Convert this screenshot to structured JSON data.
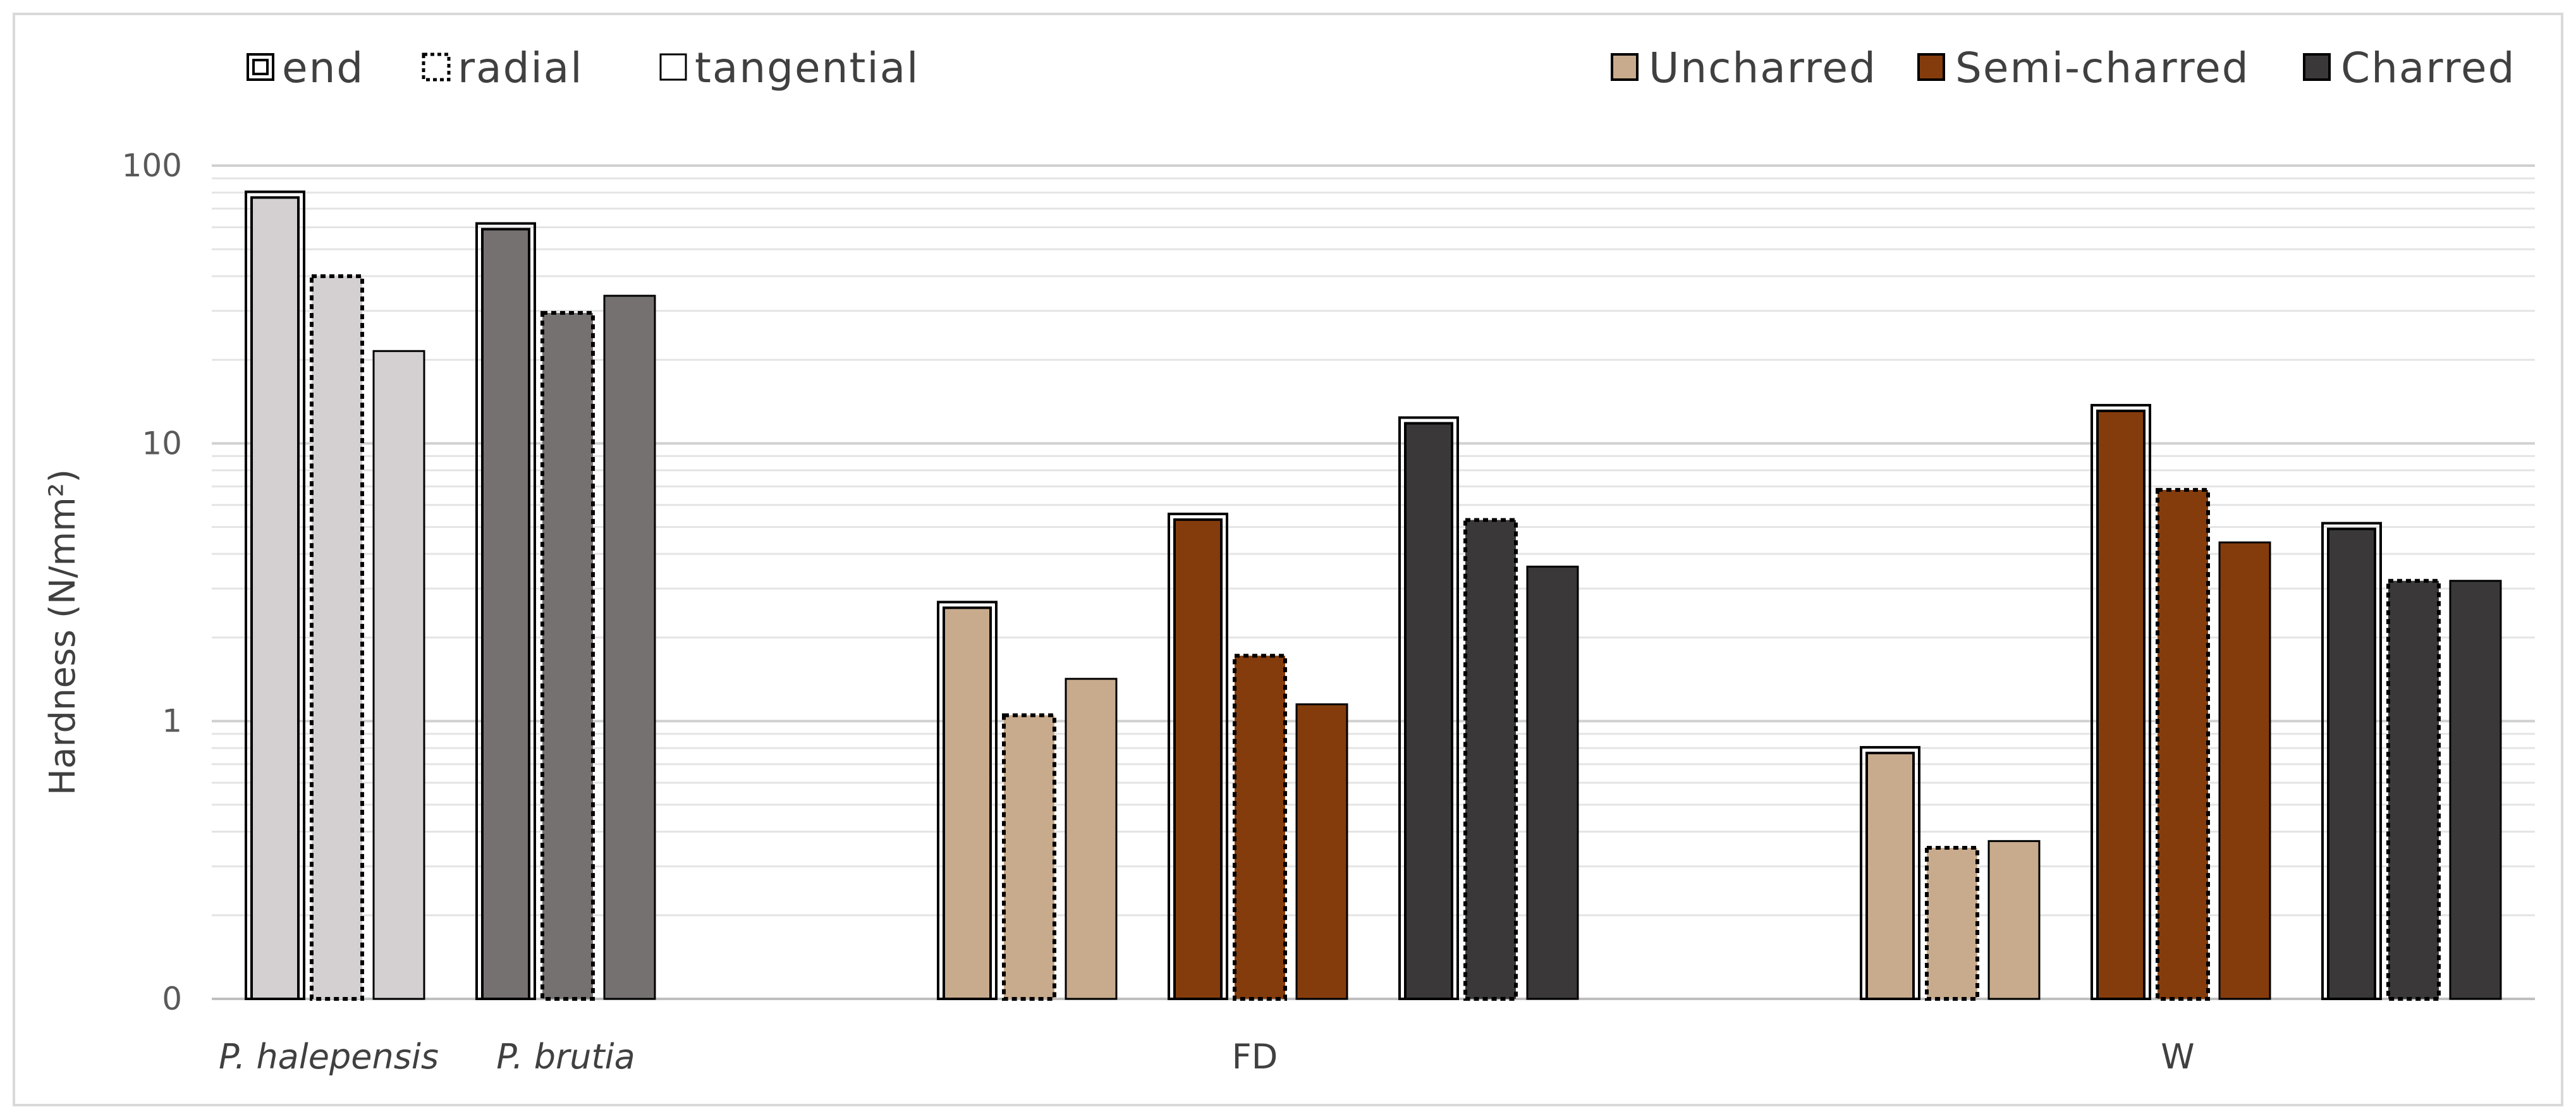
{
  "chart_data": {
    "type": "bar",
    "ylabel": "Hardness (N/mm²)",
    "y_scale": "log",
    "ylim": [
      0.1,
      100
    ],
    "y_ticks": [
      0.1,
      1,
      10,
      100
    ],
    "y_tick_labels": [
      "0",
      "1",
      "10",
      "100"
    ],
    "grid": "major and minor horizontal",
    "legend_orientation_left": "top-left",
    "legend_color_right": "top-right",
    "orientation_legend": [
      {
        "key": "end",
        "label": "end",
        "style": "double-border"
      },
      {
        "key": "radial",
        "label": "radial",
        "style": "dotted-border"
      },
      {
        "key": "tangential",
        "label": "tangential",
        "style": "plain-border"
      }
    ],
    "treatment_legend": [
      {
        "key": "uncharred",
        "label": "Uncharred",
        "color": "#c8ab8d"
      },
      {
        "key": "semi",
        "label": "Semi-charred",
        "color": "#843c0c"
      },
      {
        "key": "charred",
        "label": "Charred",
        "color": "#3a3838"
      }
    ],
    "groups": [
      {
        "label": "P. halepensis",
        "italic": true,
        "color": "#d4d0d2",
        "values": {
          "end": 78,
          "radial": 40,
          "tangential": 21.5
        }
      },
      {
        "label": "P. brutia",
        "italic": true,
        "color": "#767171",
        "values": {
          "end": 60,
          "radial": 29.5,
          "tangential": 34
        }
      },
      {
        "label": "",
        "treatment": "uncharred",
        "color": "#c8ab8d",
        "values": {
          "end": 2.6,
          "radial": 1.05,
          "tangential": 1.42
        }
      },
      {
        "label": "FD",
        "treatment": "semi",
        "color": "#843c0c",
        "values": {
          "end": 5.4,
          "radial": 1.72,
          "tangential": 1.15
        }
      },
      {
        "label": "",
        "treatment": "charred",
        "color": "#3a3838",
        "values": {
          "end": 12,
          "radial": 5.3,
          "tangential": 3.6
        }
      },
      {
        "label": "",
        "treatment": "uncharred",
        "color": "#c8ab8d",
        "values": {
          "end": 0.78,
          "radial": 0.35,
          "tangential": 0.37
        }
      },
      {
        "label": "W",
        "treatment": "semi",
        "color": "#843c0c",
        "values": {
          "end": 13.3,
          "radial": 6.8,
          "tangential": 4.4
        }
      },
      {
        "label": "",
        "treatment": "charred",
        "color": "#3a3838",
        "values": {
          "end": 5.0,
          "radial": 3.2,
          "tangential": 3.2
        }
      }
    ]
  }
}
